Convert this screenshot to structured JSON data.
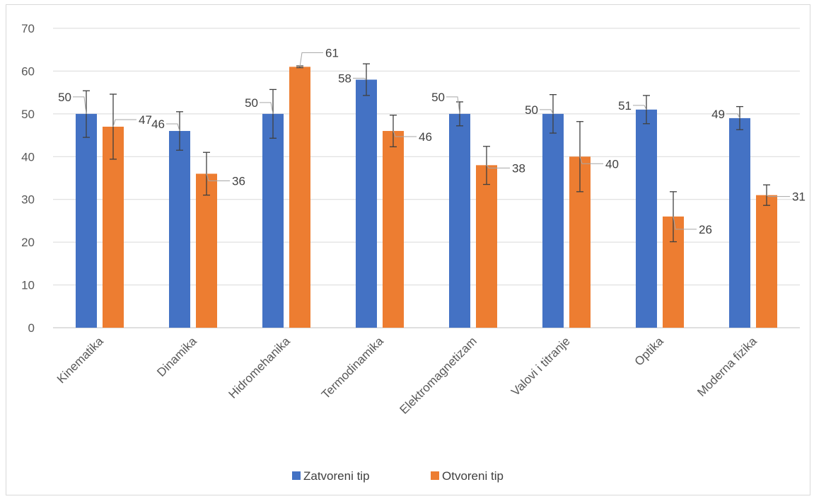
{
  "chart_data": {
    "type": "bar",
    "categories": [
      "Kinematika",
      "Dinamika",
      "Hidromehanika",
      "Termodinamika",
      "Elektromagnetizam",
      "Valovi i titranje",
      "Optika",
      "Moderna fizika"
    ],
    "series": [
      {
        "name": "Zatvoreni tip",
        "color": "#4472C4",
        "values": [
          50,
          46,
          50,
          58,
          50,
          50,
          51,
          49
        ],
        "error_low": [
          44.5,
          41.5,
          44.3,
          54.3,
          47.2,
          45.5,
          47.7,
          46.3
        ],
        "error_high": [
          55.4,
          50.5,
          55.7,
          61.7,
          52.8,
          54.5,
          54.3,
          51.7
        ]
      },
      {
        "name": "Otvoreni tip",
        "color": "#ED7D31",
        "values": [
          47,
          36,
          61,
          46,
          38,
          40,
          26,
          31
        ],
        "error_low": [
          39.4,
          31.0,
          60.8,
          42.3,
          33.5,
          31.8,
          20.1,
          28.6
        ],
        "error_high": [
          54.6,
          41.0,
          61.2,
          49.7,
          42.4,
          48.2,
          31.8,
          33.4
        ]
      }
    ],
    "data_labels": [
      [
        "50",
        "46",
        "50",
        "58",
        "50",
        "50",
        "51",
        "49"
      ],
      [
        "47",
        "36",
        "61",
        "46",
        "38",
        "40",
        "26",
        "31"
      ]
    ],
    "yticks": [
      "0",
      "10",
      "20",
      "30",
      "40",
      "50",
      "60",
      "70"
    ],
    "ylim": [
      0,
      70
    ],
    "grid": true,
    "legend_position": "bottom",
    "title": "",
    "xlabel": "",
    "ylabel": ""
  }
}
